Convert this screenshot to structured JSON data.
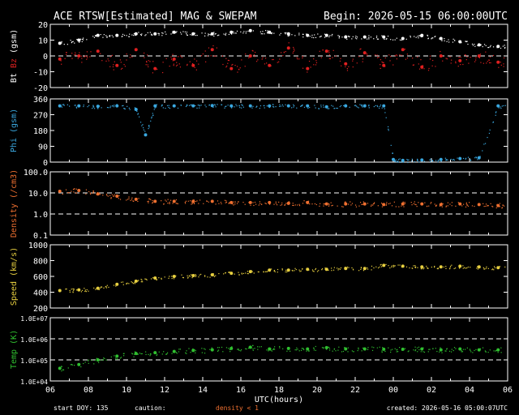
{
  "header": {
    "title": "ACE RTSW[Estimated] MAG & SWEPAM",
    "begin": "Begin: 2026-05-15 06:00:00UTC"
  },
  "footer": {
    "start_doy": "start DOY: 135",
    "caution": "caution:",
    "density_note": "density < 1",
    "created": "created: 2026-05-16 05:00:07UTC"
  },
  "colors": {
    "background": "#000000",
    "frame": "#ffffff",
    "bt": "#ffffff",
    "bz": "#e02020",
    "phi": "#3aa8e0",
    "density": "#f07030",
    "speed": "#e8d040",
    "temp": "#30c030",
    "caution": "#f07030"
  },
  "chart_data": [
    {
      "type": "scatter",
      "panel": "mag_bt_bz",
      "ylabel_parts": [
        "Bt",
        "Bz",
        "(gsm)"
      ],
      "ylim": [
        -20,
        20
      ],
      "yticks": [
        -20,
        -10,
        0,
        10,
        20
      ],
      "ytick_labels": [
        "-20",
        "-10",
        "0",
        "10",
        "20"
      ],
      "dashed_lines": [
        0
      ],
      "series": [
        {
          "name": "Bt",
          "x": [
            0,
            1,
            2,
            3,
            4,
            5,
            6,
            7,
            8,
            9,
            10,
            11,
            12,
            13,
            14,
            15,
            16,
            17,
            18,
            19,
            20,
            21,
            22,
            23
          ],
          "values": [
            8,
            10,
            13,
            13,
            14,
            14,
            15,
            14,
            14,
            15,
            16,
            15,
            14,
            13,
            13,
            12,
            12,
            12,
            11,
            13,
            11,
            9,
            7,
            6
          ]
        },
        {
          "name": "Bz",
          "x": [
            0,
            1,
            2,
            3,
            4,
            5,
            6,
            7,
            8,
            9,
            10,
            11,
            12,
            13,
            14,
            15,
            16,
            17,
            18,
            19,
            20,
            21,
            22,
            23
          ],
          "values": [
            -2,
            0,
            3,
            -6,
            4,
            -8,
            -2,
            -6,
            4,
            -8,
            0,
            -6,
            5,
            -8,
            3,
            -5,
            2,
            -6,
            4,
            -7,
            0,
            -3,
            0,
            -4
          ]
        }
      ]
    },
    {
      "type": "scatter",
      "panel": "phi",
      "ylabel": "Phi (gsm)",
      "ylim": [
        0,
        360
      ],
      "yticks": [
        0,
        90,
        180,
        270,
        360
      ],
      "ytick_labels": [
        "0",
        "90",
        "180",
        "270",
        "360"
      ],
      "series": [
        {
          "name": "Phi",
          "x": [
            0,
            1,
            2,
            3,
            4,
            4.5,
            5,
            6,
            7,
            8,
            9,
            10,
            11,
            12,
            13,
            14,
            15,
            16,
            17,
            17.5,
            18,
            19,
            20,
            21,
            22,
            23
          ],
          "values": [
            320,
            320,
            318,
            320,
            300,
            155,
            320,
            320,
            320,
            322,
            320,
            320,
            320,
            320,
            320,
            315,
            320,
            320,
            320,
            15,
            10,
            12,
            15,
            20,
            25,
            320
          ]
        }
      ]
    },
    {
      "type": "scatter",
      "panel": "density",
      "ylabel": "Density (/cm3)",
      "yscale": "log",
      "ylim": [
        0.1,
        100
      ],
      "yticks": [
        0.1,
        1,
        10,
        100
      ],
      "ytick_labels": [
        "0.1",
        "1.0",
        "10.0",
        "100.0"
      ],
      "dashed_lines": [
        1,
        10
      ],
      "series": [
        {
          "name": "Density",
          "x": [
            0,
            1,
            2,
            3,
            4,
            5,
            6,
            7,
            8,
            9,
            10,
            11,
            12,
            13,
            14,
            15,
            16,
            17,
            18,
            19,
            20,
            21,
            22,
            23
          ],
          "values": [
            12,
            13,
            9,
            7,
            5,
            4,
            4,
            4,
            4,
            3.5,
            3.5,
            3.5,
            3.2,
            3.5,
            3,
            3,
            3,
            2.8,
            3,
            3,
            2.8,
            3,
            2.8,
            2.5
          ]
        }
      ]
    },
    {
      "type": "scatter",
      "panel": "speed",
      "ylabel": "Speed (km/s)",
      "ylim": [
        200,
        1000
      ],
      "yticks": [
        200,
        400,
        600,
        800,
        1000
      ],
      "ytick_labels": [
        "200",
        "400",
        "600",
        "800",
        "1000"
      ],
      "series": [
        {
          "name": "Speed",
          "x": [
            0,
            1,
            2,
            3,
            4,
            5,
            6,
            7,
            8,
            9,
            10,
            11,
            12,
            13,
            14,
            15,
            16,
            17,
            18,
            19,
            20,
            21,
            22,
            23
          ],
          "values": [
            420,
            430,
            450,
            500,
            540,
            580,
            600,
            610,
            620,
            640,
            660,
            680,
            680,
            690,
            690,
            700,
            700,
            740,
            730,
            720,
            720,
            730,
            720,
            710
          ]
        }
      ]
    },
    {
      "type": "scatter",
      "panel": "temp",
      "ylabel": "Temp (K)",
      "yscale": "log",
      "ylim": [
        10000,
        10000000
      ],
      "yticks": [
        10000,
        100000,
        1000000,
        10000000
      ],
      "ytick_labels": [
        "1.0E+04",
        "1.0E+05",
        "1.0E+06",
        "1.0E+07"
      ],
      "dashed_lines": [
        100000,
        1000000
      ],
      "xlabel": "UTC(hours)",
      "xticks": [
        0,
        2,
        4,
        6,
        8,
        10,
        12,
        14,
        16,
        18,
        20,
        22,
        24
      ],
      "xtick_labels": [
        "06",
        "08",
        "10",
        "12",
        "14",
        "16",
        "18",
        "20",
        "22",
        "00",
        "02",
        "04",
        "06"
      ],
      "series": [
        {
          "name": "Temp",
          "x": [
            0,
            1,
            2,
            3,
            4,
            5,
            6,
            7,
            8,
            9,
            10,
            11,
            12,
            13,
            14,
            15,
            16,
            17,
            18,
            19,
            20,
            21,
            22,
            23
          ],
          "values": [
            40000,
            60000,
            100000,
            150000,
            200000,
            220000,
            250000,
            280000,
            300000,
            350000,
            400000,
            330000,
            350000,
            330000,
            380000,
            330000,
            330000,
            320000,
            320000,
            330000,
            300000,
            330000,
            300000,
            300000
          ]
        }
      ]
    }
  ]
}
